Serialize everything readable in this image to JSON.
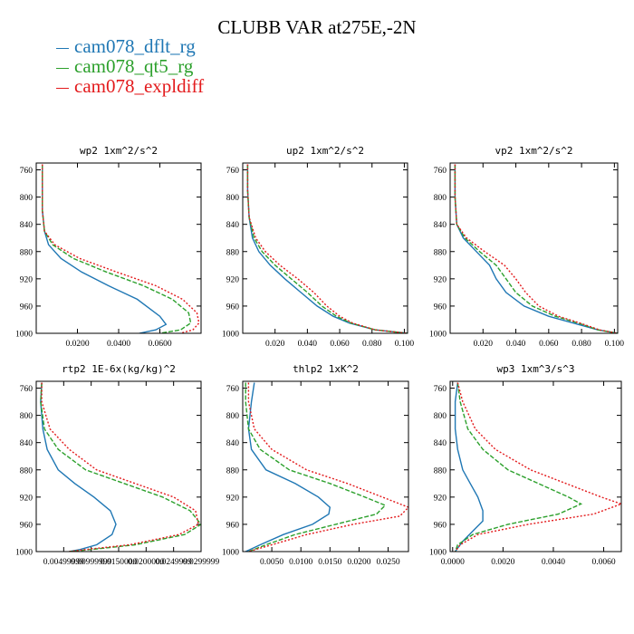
{
  "title": "CLUBB VAR at275E,-2N",
  "legend": [
    {
      "label": "cam078_dflt_rg",
      "color": "#1f77b4"
    },
    {
      "label": "cam078_qt5_rg",
      "color": "#2ca02c"
    },
    {
      "label": "cam078_expldiff",
      "color": "#e31a1c"
    }
  ],
  "chart_data": [
    {
      "type": "line",
      "title": "wp2   1xm^2/s^2",
      "xlim": [
        0,
        0.08
      ],
      "ylim": [
        1000,
        750
      ],
      "xticks": [
        0.02,
        0.04,
        0.06
      ],
      "xtick_labels": [
        "0.0200",
        "0.0400",
        "0.0600"
      ],
      "yticks": [
        760,
        800,
        840,
        880,
        920,
        960,
        1000
      ],
      "series": [
        {
          "name": "cam078_dflt_rg",
          "x": [
            0.003,
            0.003,
            0.003,
            0.004,
            0.006,
            0.012,
            0.022,
            0.035,
            0.049,
            0.06,
            0.063,
            0.058,
            0.05
          ],
          "y": [
            752,
            780,
            820,
            850,
            870,
            890,
            910,
            930,
            950,
            975,
            987,
            995,
            1000
          ]
        },
        {
          "name": "cam078_qt5_rg",
          "x": [
            0.003,
            0.003,
            0.003,
            0.004,
            0.008,
            0.018,
            0.034,
            0.052,
            0.066,
            0.074,
            0.075,
            0.07,
            0.06
          ],
          "y": [
            752,
            780,
            820,
            850,
            870,
            890,
            910,
            930,
            950,
            970,
            985,
            995,
            1000
          ]
        },
        {
          "name": "cam078_expldiff",
          "x": [
            0.003,
            0.003,
            0.003,
            0.004,
            0.009,
            0.021,
            0.039,
            0.058,
            0.071,
            0.078,
            0.079,
            0.076,
            0.07
          ],
          "y": [
            752,
            780,
            820,
            850,
            870,
            890,
            910,
            930,
            950,
            970,
            985,
            995,
            1000
          ]
        }
      ]
    },
    {
      "type": "line",
      "title": "up2   1xm^2/s^2",
      "xlim": [
        0,
        0.102
      ],
      "ylim": [
        1000,
        750
      ],
      "xticks": [
        0.02,
        0.04,
        0.06,
        0.08,
        0.1
      ],
      "xtick_labels": [
        "0.020",
        "0.040",
        "0.060",
        "0.080",
        "0.100"
      ],
      "yticks": [
        760,
        800,
        840,
        880,
        920,
        960,
        1000
      ],
      "series": [
        {
          "name": "cam078_dflt_rg",
          "x": [
            0.003,
            0.003,
            0.004,
            0.006,
            0.01,
            0.017,
            0.026,
            0.036,
            0.046,
            0.056,
            0.066,
            0.082,
            0.102
          ],
          "y": [
            752,
            790,
            830,
            860,
            880,
            900,
            920,
            940,
            960,
            975,
            985,
            995,
            1000
          ]
        },
        {
          "name": "cam078_qt5_rg",
          "x": [
            0.003,
            0.003,
            0.004,
            0.007,
            0.012,
            0.02,
            0.03,
            0.04,
            0.049,
            0.058,
            0.067,
            0.082,
            0.102
          ],
          "y": [
            752,
            790,
            830,
            860,
            880,
            900,
            920,
            940,
            960,
            975,
            985,
            995,
            1000
          ]
        },
        {
          "name": "cam078_expldiff",
          "x": [
            0.003,
            0.003,
            0.004,
            0.008,
            0.014,
            0.023,
            0.034,
            0.044,
            0.052,
            0.06,
            0.068,
            0.082,
            0.102
          ],
          "y": [
            752,
            790,
            830,
            860,
            880,
            900,
            920,
            940,
            960,
            975,
            985,
            995,
            1000
          ]
        }
      ]
    },
    {
      "type": "line",
      "title": "vp2   1xm^2/s^2",
      "xlim": [
        0,
        0.102
      ],
      "ylim": [
        1000,
        750
      ],
      "xticks": [
        0.02,
        0.04,
        0.06,
        0.08,
        0.1
      ],
      "xtick_labels": [
        "0.020",
        "0.040",
        "0.060",
        "0.080",
        "0.100"
      ],
      "yticks": [
        760,
        800,
        840,
        880,
        920,
        960,
        1000
      ],
      "series": [
        {
          "name": "cam078_dflt_rg",
          "x": [
            0.003,
            0.003,
            0.004,
            0.008,
            0.016,
            0.024,
            0.028,
            0.034,
            0.045,
            0.06,
            0.075,
            0.09,
            0.102
          ],
          "y": [
            752,
            800,
            840,
            860,
            880,
            900,
            920,
            940,
            960,
            975,
            985,
            995,
            1000
          ]
        },
        {
          "name": "cam078_qt5_rg",
          "x": [
            0.003,
            0.003,
            0.004,
            0.009,
            0.018,
            0.028,
            0.034,
            0.04,
            0.05,
            0.064,
            0.078,
            0.09,
            0.102
          ],
          "y": [
            752,
            800,
            840,
            860,
            880,
            900,
            920,
            940,
            960,
            975,
            985,
            995,
            1000
          ]
        },
        {
          "name": "cam078_expldiff",
          "x": [
            0.003,
            0.003,
            0.004,
            0.01,
            0.021,
            0.033,
            0.04,
            0.046,
            0.054,
            0.066,
            0.079,
            0.091,
            0.102
          ],
          "y": [
            752,
            800,
            840,
            860,
            880,
            900,
            920,
            940,
            960,
            975,
            985,
            995,
            1000
          ]
        }
      ]
    },
    {
      "type": "line",
      "title": "rtp2   1E-6x(kg/kg)^2",
      "xlim": [
        0,
        0.03
      ],
      "ylim": [
        1000,
        750
      ],
      "xticks": [
        0.005,
        0.01,
        0.015,
        0.02,
        0.025,
        0.03
      ],
      "xtick_labels": [
        "0.00499999",
        "0.00999999",
        "0.0150000",
        "0.0200000",
        "0.0249999",
        "0.0299999"
      ],
      "yticks": [
        760,
        800,
        840,
        880,
        920,
        960,
        1000
      ],
      "series": [
        {
          "name": "cam078_dflt_rg",
          "x": [
            0.001,
            0.0008,
            0.0012,
            0.002,
            0.004,
            0.007,
            0.0105,
            0.0135,
            0.0145,
            0.0138,
            0.011,
            0.008,
            0.006
          ],
          "y": [
            752,
            780,
            820,
            850,
            880,
            900,
            920,
            940,
            960,
            975,
            990,
            997,
            1000
          ]
        },
        {
          "name": "cam078_qt5_rg",
          "x": [
            0.001,
            0.0008,
            0.0015,
            0.004,
            0.009,
            0.016,
            0.023,
            0.028,
            0.03,
            0.027,
            0.018,
            0.01,
            0.006
          ],
          "y": [
            752,
            780,
            820,
            850,
            880,
            900,
            920,
            940,
            960,
            975,
            990,
            997,
            1000
          ]
        },
        {
          "name": "cam078_expldiff",
          "x": [
            0.001,
            0.001,
            0.0025,
            0.006,
            0.011,
            0.018,
            0.025,
            0.029,
            0.0295,
            0.026,
            0.017,
            0.009,
            0.006
          ],
          "y": [
            752,
            780,
            820,
            850,
            880,
            900,
            920,
            940,
            960,
            975,
            990,
            997,
            1000
          ]
        }
      ]
    },
    {
      "type": "line",
      "title": "thlp2   1xK^2",
      "xlim": [
        0,
        0.0285
      ],
      "ylim": [
        1000,
        750
      ],
      "xticks": [
        0.005,
        0.01,
        0.015,
        0.02,
        0.025
      ],
      "xtick_labels": [
        "0.0050",
        "0.0100",
        "0.0150",
        "0.0200",
        "0.0250"
      ],
      "yticks": [
        760,
        800,
        840,
        880,
        920,
        960,
        1000
      ],
      "series": [
        {
          "name": "cam078_dflt_rg",
          "x": [
            0.002,
            0.0015,
            0.001,
            0.0015,
            0.004,
            0.009,
            0.013,
            0.015,
            0.0148,
            0.012,
            0.007,
            0.003,
            0.0005
          ],
          "y": [
            752,
            780,
            820,
            850,
            880,
            900,
            920,
            935,
            945,
            960,
            975,
            990,
            1000
          ]
        },
        {
          "name": "cam078_qt5_rg",
          "x": [
            0.0005,
            0.0005,
            0.001,
            0.003,
            0.008,
            0.015,
            0.021,
            0.0245,
            0.023,
            0.016,
            0.009,
            0.004,
            0.001
          ],
          "y": [
            752,
            780,
            820,
            850,
            880,
            900,
            920,
            932,
            945,
            960,
            975,
            990,
            1000
          ]
        },
        {
          "name": "cam078_expldiff",
          "x": [
            0.001,
            0.001,
            0.002,
            0.005,
            0.011,
            0.018,
            0.024,
            0.0285,
            0.027,
            0.019,
            0.011,
            0.005,
            0.001
          ],
          "y": [
            752,
            780,
            820,
            850,
            880,
            900,
            920,
            935,
            948,
            960,
            975,
            990,
            1000
          ]
        }
      ]
    },
    {
      "type": "line",
      "title": "wp3   1xm^3/s^3",
      "xlim": [
        -0.0001,
        0.0067
      ],
      "ylim": [
        1000,
        750
      ],
      "xticks": [
        0,
        0.002,
        0.004,
        0.006
      ],
      "xtick_labels": [
        "0.0000",
        "0.0020",
        "0.0040",
        "0.0060"
      ],
      "yticks": [
        760,
        800,
        840,
        880,
        920,
        960,
        1000
      ],
      "series": [
        {
          "name": "cam078_dflt_rg",
          "x": [
            0.0002,
            0.0001,
            0.0001,
            0.0002,
            0.0004,
            0.0007,
            0.001,
            0.0012,
            0.0012,
            0.0008,
            0.0004,
            0.0002,
            0.0001
          ],
          "y": [
            752,
            780,
            820,
            850,
            880,
            900,
            920,
            940,
            955,
            970,
            985,
            995,
            1000
          ]
        },
        {
          "name": "cam078_qt5_rg",
          "x": [
            0.0002,
            0.0003,
            0.0006,
            0.0012,
            0.0022,
            0.0034,
            0.0046,
            0.0051,
            0.0042,
            0.0022,
            0.0008,
            0.0002,
            0.0001
          ],
          "y": [
            752,
            780,
            820,
            850,
            880,
            900,
            920,
            930,
            945,
            960,
            975,
            990,
            1000
          ]
        },
        {
          "name": "cam078_expldiff",
          "x": [
            0.0002,
            0.0004,
            0.0009,
            0.0017,
            0.0031,
            0.0045,
            0.0059,
            0.0067,
            0.0056,
            0.003,
            0.001,
            0.0003,
            0.0001
          ],
          "y": [
            752,
            780,
            820,
            850,
            880,
            900,
            920,
            930,
            945,
            960,
            975,
            990,
            1000
          ]
        }
      ]
    }
  ]
}
